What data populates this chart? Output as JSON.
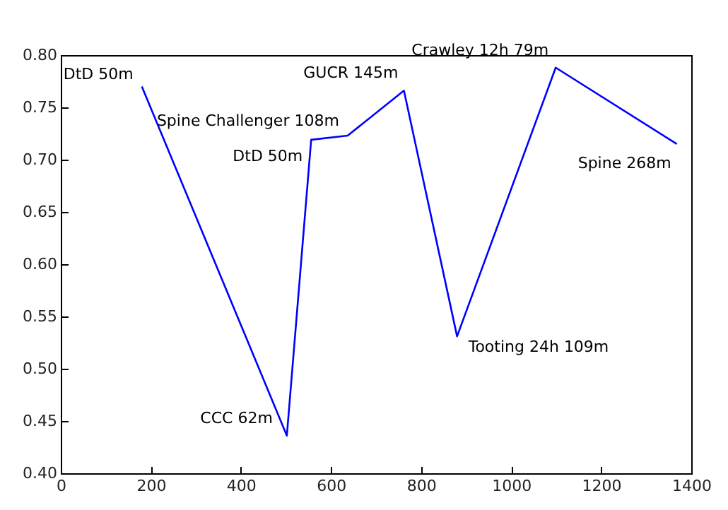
{
  "chart_data": {
    "type": "line",
    "x": [
      180,
      502,
      556,
      637,
      762,
      880,
      1099,
      1368
    ],
    "series": [
      {
        "color": "#0000ff",
        "values": [
          0.77,
          0.436,
          0.719,
          0.723,
          0.766,
          0.531,
          0.788,
          0.715
        ]
      }
    ],
    "xlim": [
      0,
      1400
    ],
    "xticks": [
      0,
      200,
      400,
      600,
      800,
      1000,
      1200,
      1400
    ],
    "ylim": [
      0.4,
      0.8
    ],
    "yticks": [
      {
        "value": 0.4,
        "label": "0.40"
      },
      {
        "value": 0.45,
        "label": "0.45"
      },
      {
        "value": 0.5,
        "label": "0.50"
      },
      {
        "value": 0.55,
        "label": "0.55"
      },
      {
        "value": 0.6,
        "label": "0.60"
      },
      {
        "value": 0.65,
        "label": "0.65"
      },
      {
        "value": 0.7,
        "label": "0.70"
      },
      {
        "value": 0.75,
        "label": "0.75"
      },
      {
        "value": 0.8,
        "label": "0.80"
      }
    ],
    "grid": false,
    "annotations": [
      {
        "text": "DtD 50m",
        "x": 180,
        "y": 0.77
      },
      {
        "text": "CCC 62m",
        "x": 502,
        "y": 0.436
      },
      {
        "text": "DtD 50m",
        "x": 556,
        "y": 0.719
      },
      {
        "text": "Spine Challenger 108m",
        "x": 637,
        "y": 0.723
      },
      {
        "text": "GUCR 145m",
        "x": 762,
        "y": 0.766
      },
      {
        "text": "Tooting 24h 109m",
        "x": 880,
        "y": 0.531
      },
      {
        "text": "Crawley 12h 79m",
        "x": 1099,
        "y": 0.788
      },
      {
        "text": "Spine 268m",
        "x": 1368,
        "y": 0.715
      }
    ]
  }
}
